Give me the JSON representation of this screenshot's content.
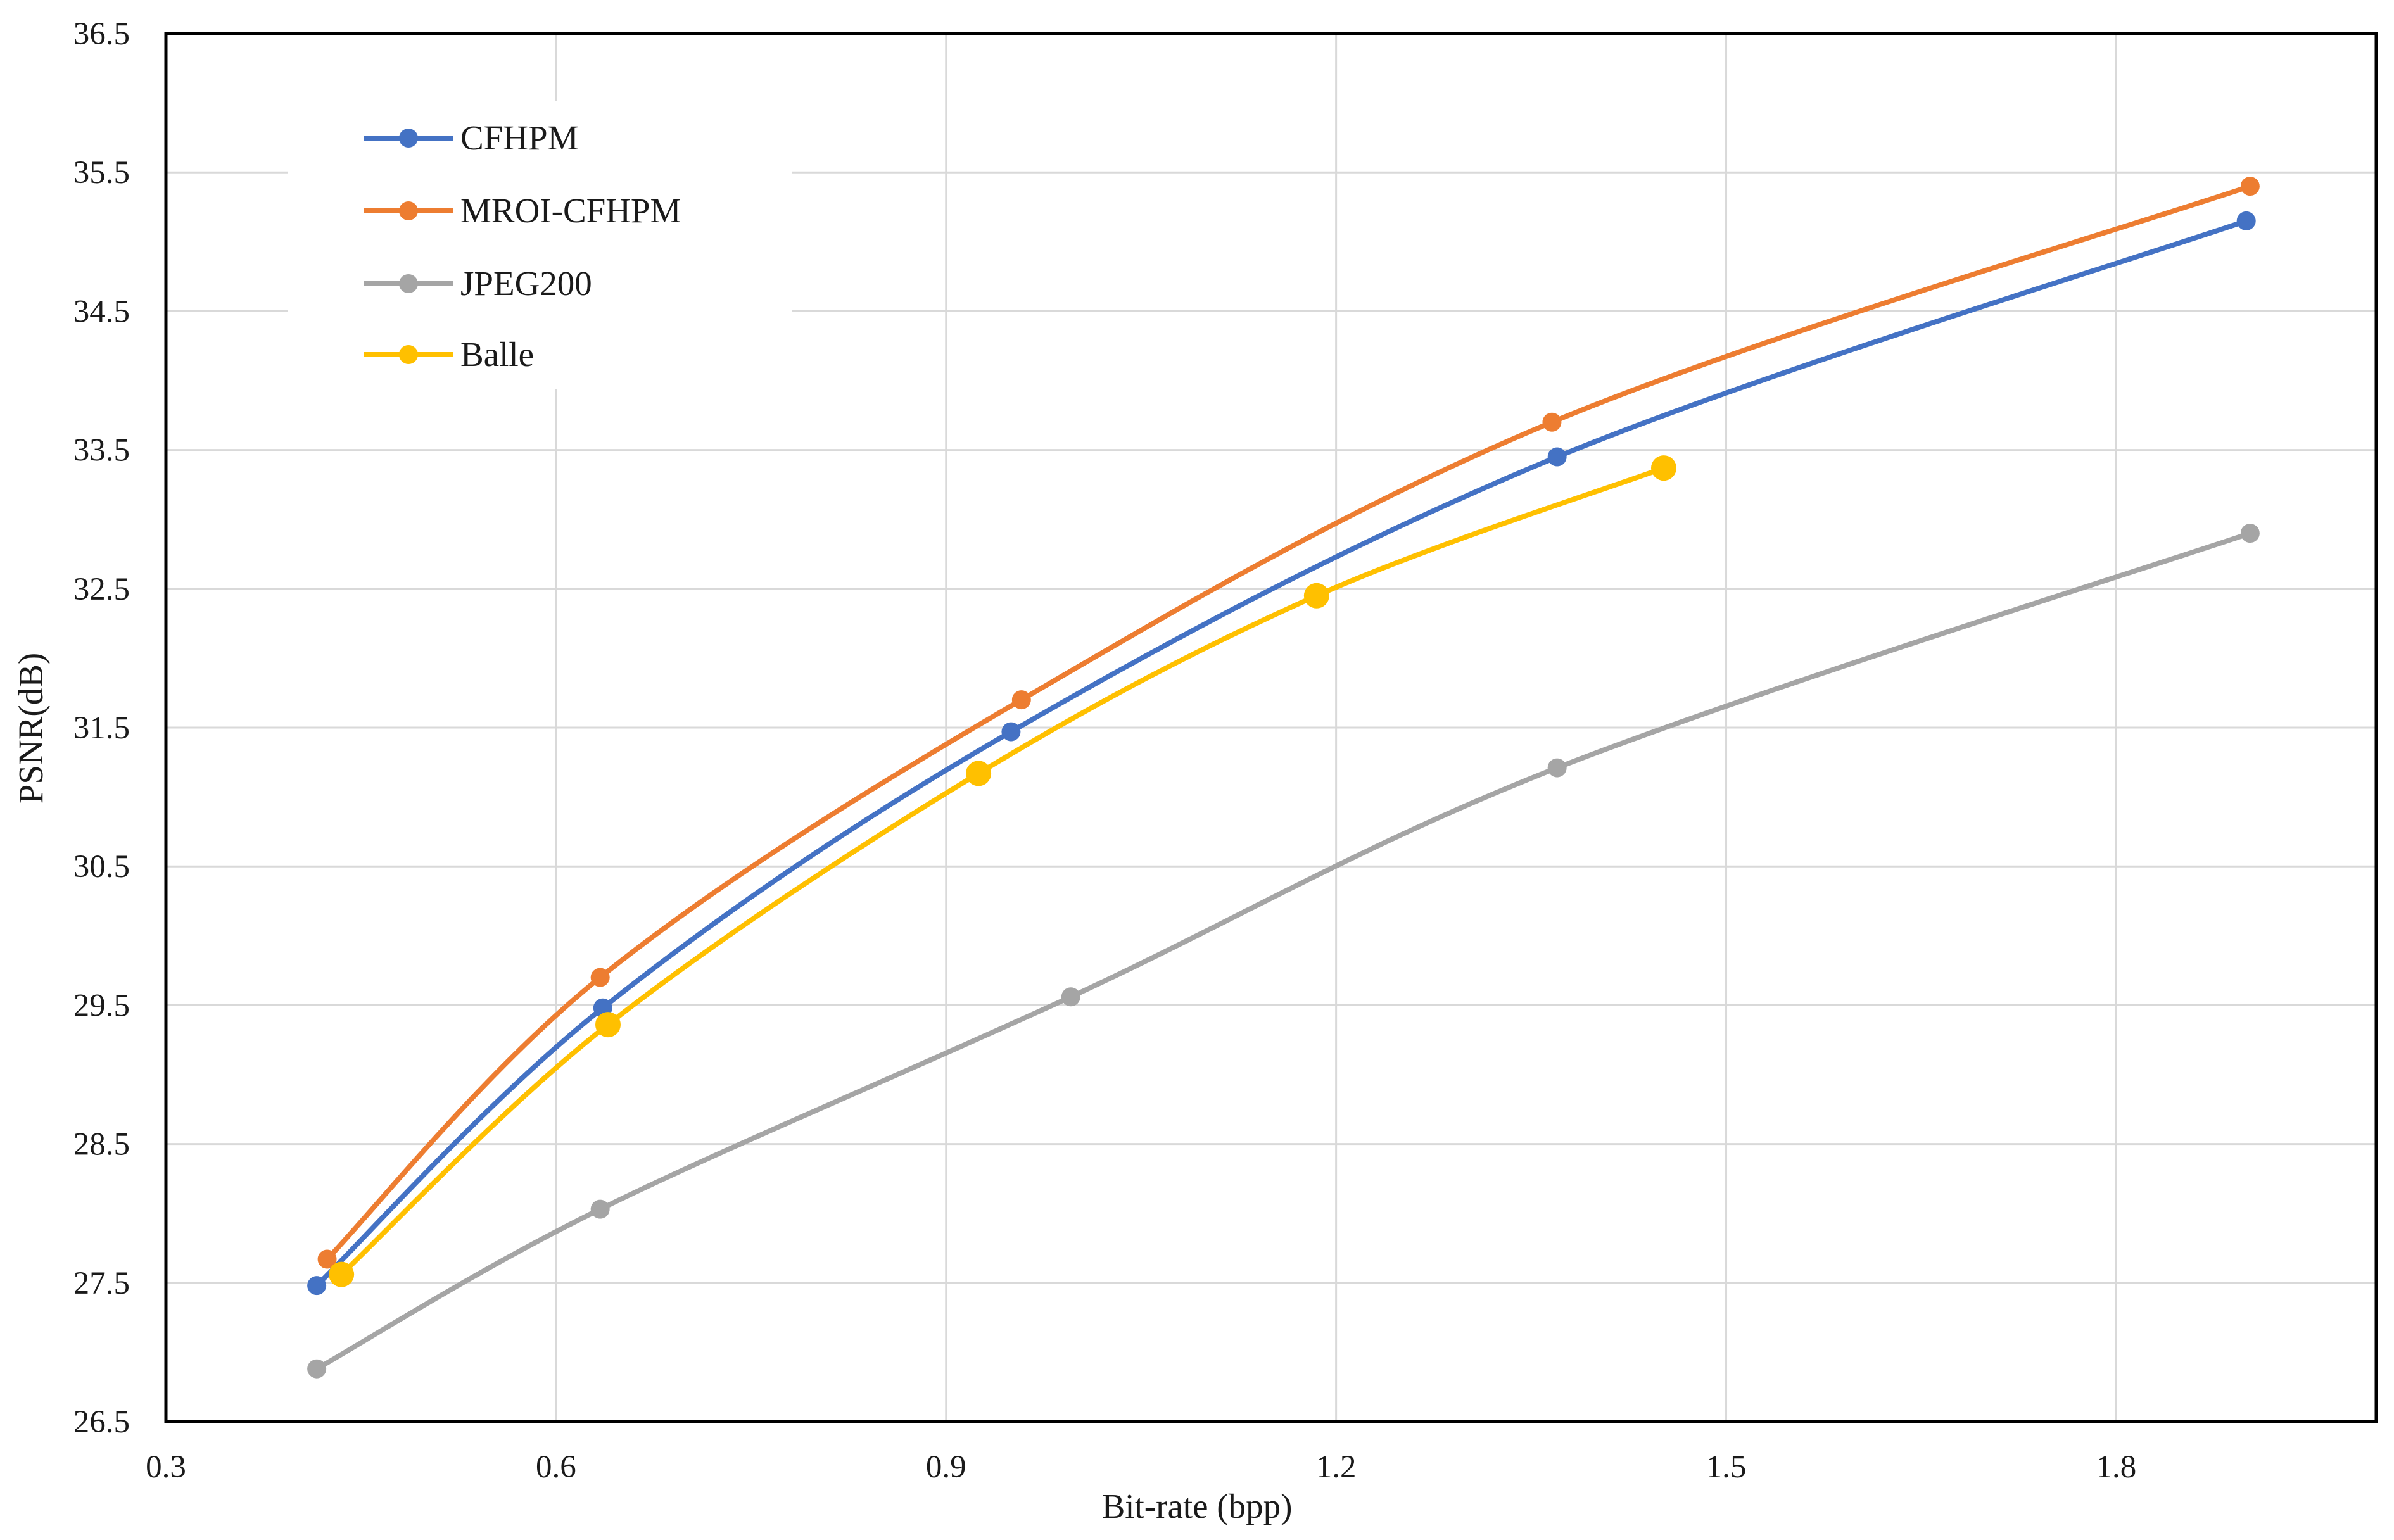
{
  "chart_data": {
    "type": "line",
    "title": "",
    "xlabel": "Bit-rate (bpp)",
    "ylabel": "PSNR(dB)",
    "xlim": [
      0.3,
      2.0
    ],
    "ylim": [
      26.5,
      36.5
    ],
    "xticks": [
      "0.3",
      "0.6",
      "0.9",
      "1.2",
      "1.5",
      "1.8"
    ],
    "yticks": [
      "26.5",
      "27.5",
      "28.5",
      "29.5",
      "30.5",
      "31.5",
      "32.5",
      "33.5",
      "34.5",
      "35.5",
      "36.5"
    ],
    "grid": true,
    "legend_position": "top-left",
    "smooth": true,
    "series": [
      {
        "name": "CFHPM",
        "color": "#4472C4",
        "points": [
          [
            0.416,
            27.48
          ],
          [
            0.636,
            29.48
          ],
          [
            0.95,
            31.47
          ],
          [
            1.37,
            33.45
          ],
          [
            1.9,
            35.15
          ]
        ]
      },
      {
        "name": "MROI-CFHPM",
        "color": "#ED7D31",
        "points": [
          [
            0.424,
            27.67
          ],
          [
            0.634,
            29.7
          ],
          [
            0.958,
            31.7
          ],
          [
            1.366,
            33.7
          ],
          [
            1.903,
            35.4
          ]
        ]
      },
      {
        "name": "JPEG200",
        "color": "#A5A5A5",
        "points": [
          [
            0.416,
            26.88
          ],
          [
            0.634,
            28.03
          ],
          [
            0.996,
            29.56
          ],
          [
            1.37,
            31.21
          ],
          [
            1.903,
            32.9
          ]
        ]
      },
      {
        "name": "Balle",
        "color": "#FFC000",
        "points": [
          [
            0.435,
            27.56
          ],
          [
            0.64,
            29.36
          ],
          [
            0.925,
            31.17
          ],
          [
            1.185,
            32.45
          ],
          [
            1.452,
            33.37
          ]
        ]
      }
    ]
  }
}
